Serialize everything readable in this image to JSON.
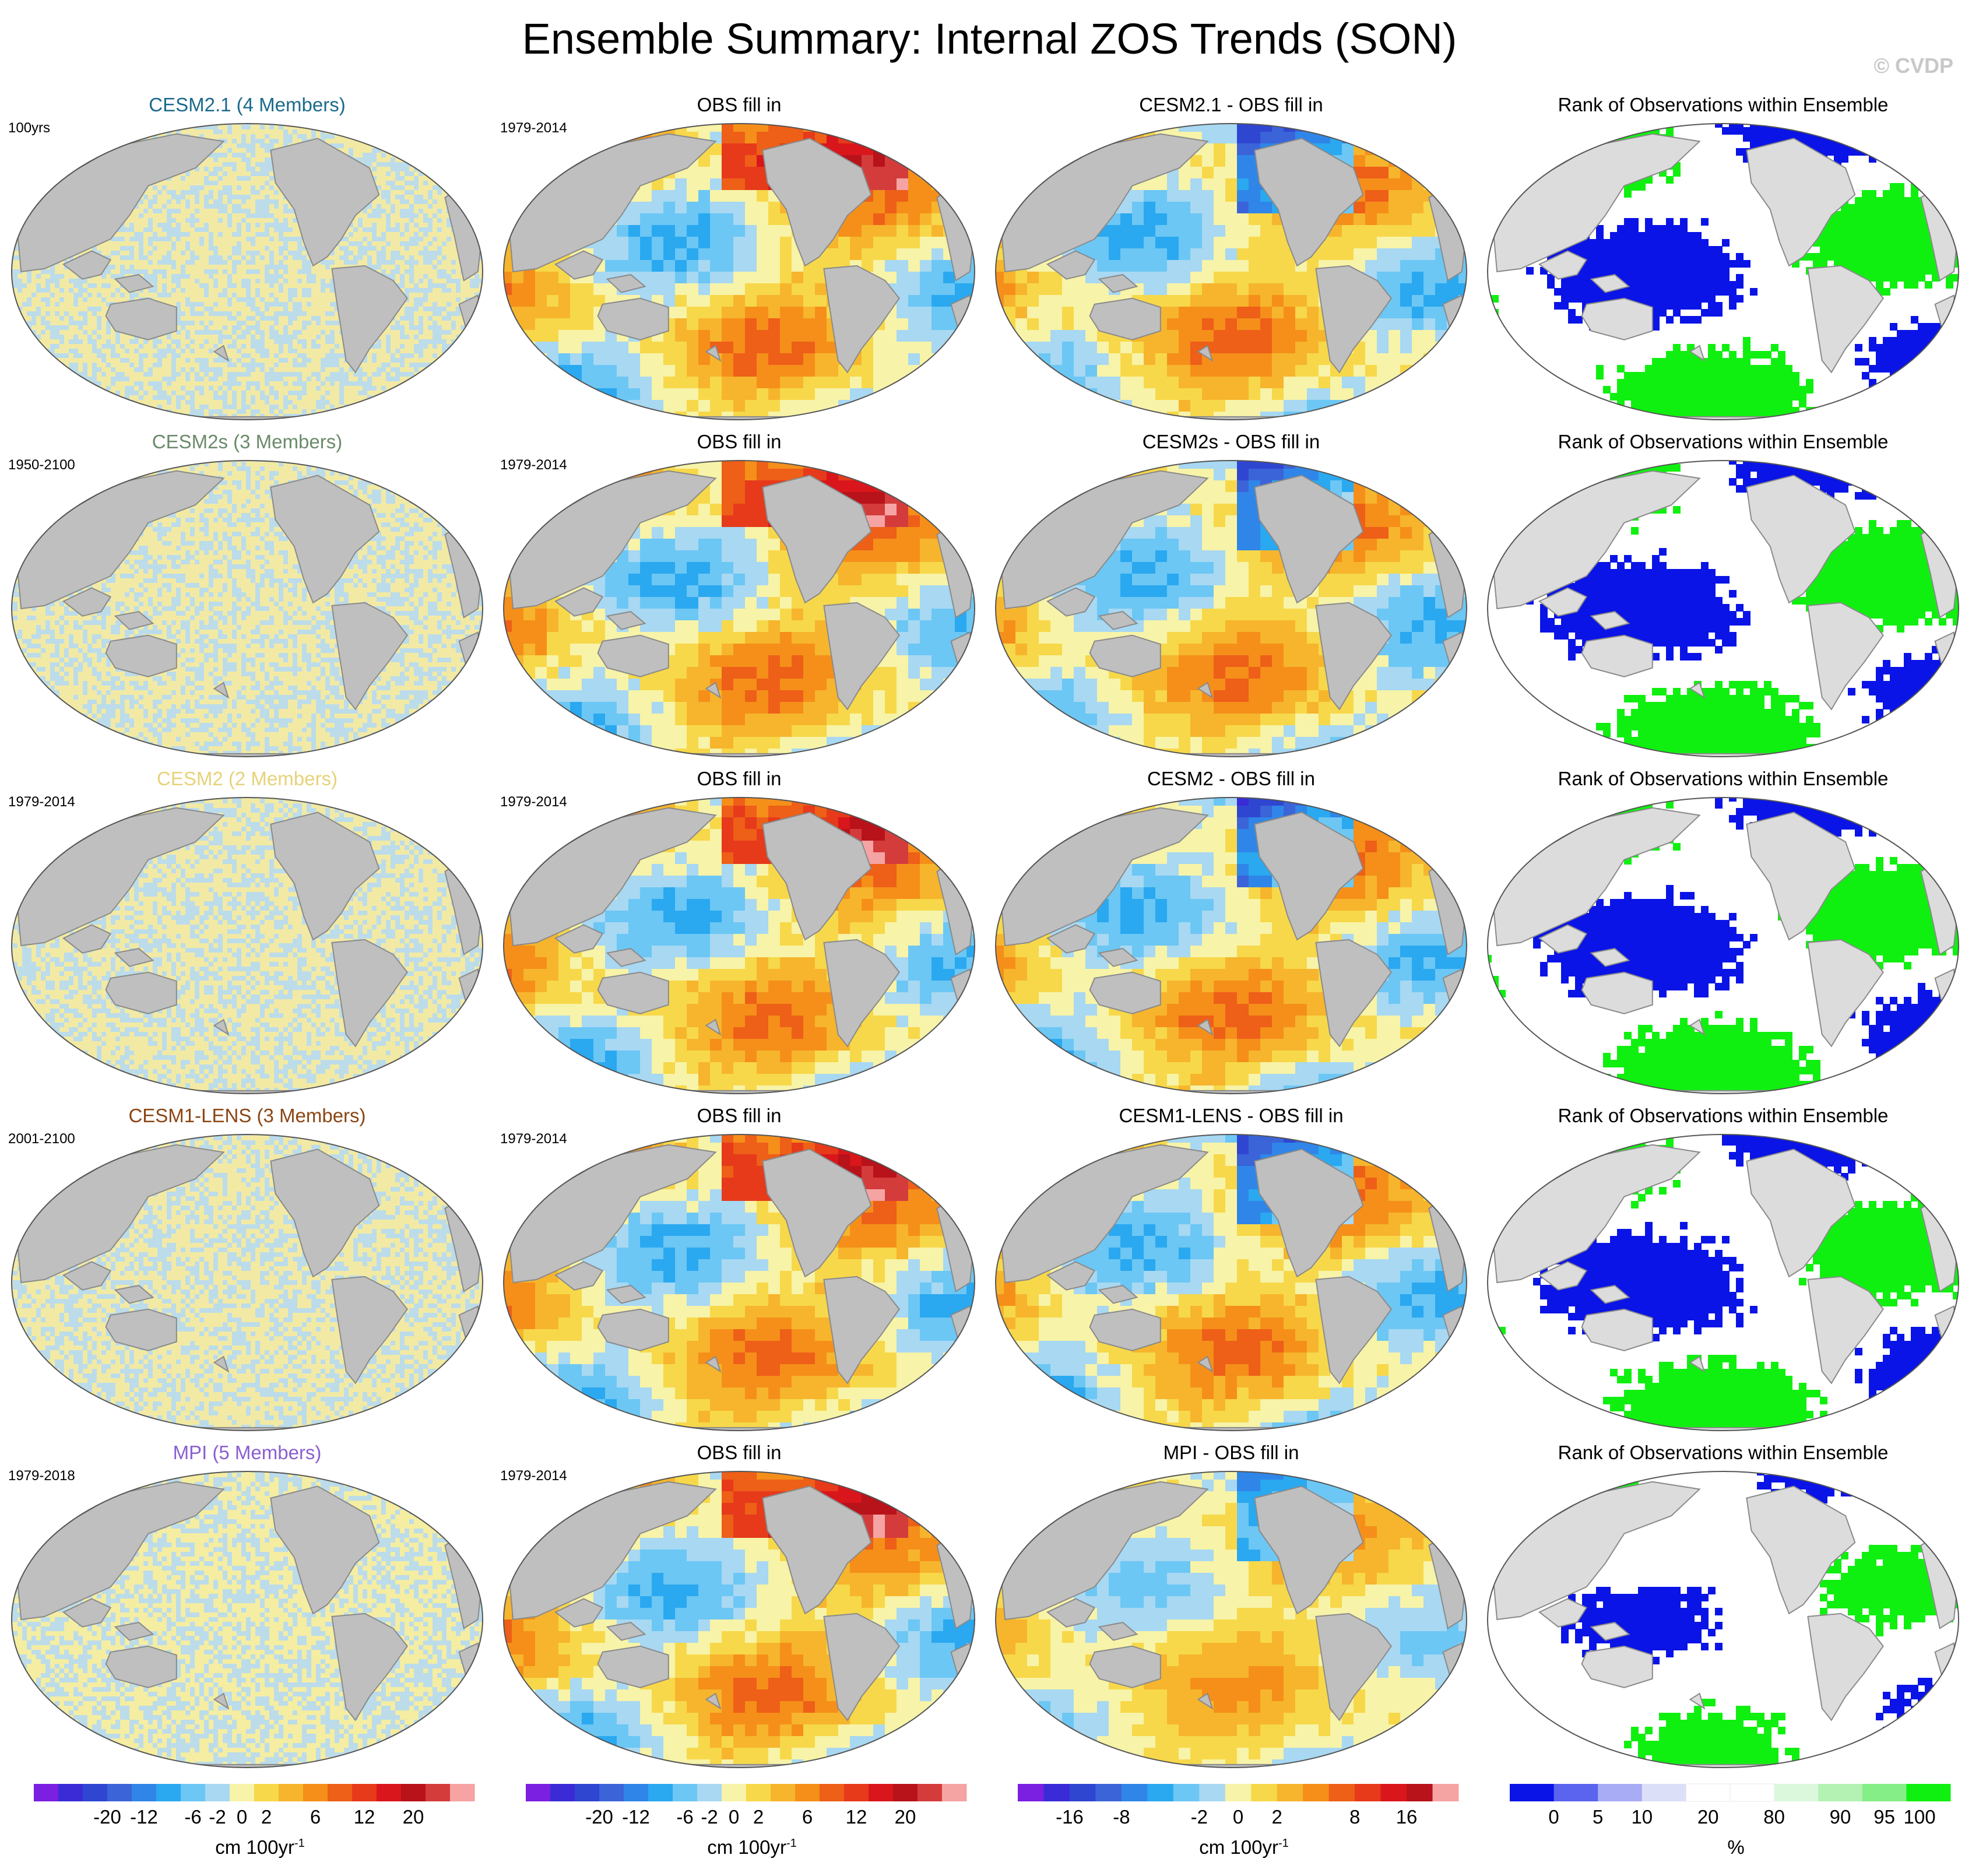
{
  "title": "Ensemble Summary: Internal ZOS Trends (SON)",
  "credit": "© CVDP",
  "rows": [
    {
      "model": {
        "title": "CESM2.1 (4 Members)",
        "title_color": "#1b6a8c",
        "period": "100yrs"
      },
      "obs": {
        "title": "OBS fill in",
        "period": "1979-2014"
      },
      "diff": {
        "title": "CESM2.1 - OBS fill in"
      },
      "rank": {
        "title": "Rank of Observations within Ensemble"
      }
    },
    {
      "model": {
        "title": "CESM2s (3 Members)",
        "title_color": "#6a8a6a",
        "period": "1950-2100"
      },
      "obs": {
        "title": "OBS fill in",
        "period": "1979-2014"
      },
      "diff": {
        "title": "CESM2s - OBS fill in"
      },
      "rank": {
        "title": "Rank of Observations within Ensemble"
      }
    },
    {
      "model": {
        "title": "CESM2 (2 Members)",
        "title_color": "#e6d27a",
        "period": "1979-2014"
      },
      "obs": {
        "title": "OBS fill in",
        "period": "1979-2014"
      },
      "diff": {
        "title": "CESM2 - OBS fill in"
      },
      "rank": {
        "title": "Rank of Observations within Ensemble"
      }
    },
    {
      "model": {
        "title": "CESM1-LENS (3 Members)",
        "title_color": "#8b4513",
        "period": "2001-2100"
      },
      "obs": {
        "title": "OBS fill in",
        "period": "1979-2014"
      },
      "diff": {
        "title": "CESM1-LENS - OBS fill in"
      },
      "rank": {
        "title": "Rank of Observations within Ensemble"
      }
    },
    {
      "model": {
        "title": "MPI (5 Members)",
        "title_color": "#8a5fd0",
        "period": "1979-2018"
      },
      "obs": {
        "title": "OBS fill in",
        "period": "1979-2014"
      },
      "diff": {
        "title": "MPI - OBS fill in"
      },
      "rank": {
        "title": "Rank of Observations within Ensemble"
      }
    }
  ],
  "colorbars": [
    {
      "units": "cm 100yr",
      "units_sup": "-1",
      "colors": [
        "#7b1fe0",
        "#3a2bd6",
        "#2f46d1",
        "#3a64d8",
        "#2f86e8",
        "#2aa8f0",
        "#6cc7f4",
        "#a8d8f2",
        "#f7f3a8",
        "#f7d84a",
        "#f6b52c",
        "#f58f1a",
        "#ee5f18",
        "#e63a1b",
        "#d9161b",
        "#b8121a",
        "#d43c3c",
        "#f6a3a3"
      ],
      "tick_labels": [
        "-20",
        "-12",
        "-6",
        "-2",
        "0",
        "2",
        "6",
        "12",
        "20"
      ]
    },
    {
      "units": "cm 100yr",
      "units_sup": "-1",
      "colors": [
        "#7b1fe0",
        "#3a2bd6",
        "#2f46d1",
        "#3a64d8",
        "#2f86e8",
        "#2aa8f0",
        "#6cc7f4",
        "#a8d8f2",
        "#f7f3a8",
        "#f7d84a",
        "#f6b52c",
        "#f58f1a",
        "#ee5f18",
        "#e63a1b",
        "#d9161b",
        "#b8121a",
        "#d43c3c",
        "#f6a3a3"
      ],
      "tick_labels": [
        "-20",
        "-12",
        "-6",
        "-2",
        "0",
        "2",
        "6",
        "12",
        "20"
      ]
    },
    {
      "units": "cm 100yr",
      "units_sup": "-1",
      "colors": [
        "#7b1fe0",
        "#3a2bd6",
        "#2f46d1",
        "#3a64d8",
        "#2f86e8",
        "#2aa8f0",
        "#6cc7f4",
        "#a8d8f2",
        "#f7f3a8",
        "#f7d84a",
        "#f6b52c",
        "#f58f1a",
        "#ee5f18",
        "#e63a1b",
        "#d9161b",
        "#b8121a",
        "#f6a3a3"
      ],
      "tick_labels": [
        "-16",
        "-8",
        "-2",
        "0",
        "2",
        "8",
        "16"
      ]
    },
    {
      "units": "%",
      "units_sup": "",
      "colors": [
        "#0a14e6",
        "#5a64ee",
        "#a8acf4",
        "#dcdff8",
        "#ffffff",
        "#ffffff",
        "#dcf8dc",
        "#b4f2b4",
        "#86ee86",
        "#10f010"
      ],
      "tick_labels": [
        "0",
        "5",
        "10",
        "20",
        "80",
        "90",
        "95",
        "100"
      ]
    }
  ],
  "chart_data": {
    "type": "heatmap",
    "title": "Ensemble Summary: Internal ZOS Trends (SON)",
    "projection": "global map, Pacific-centered",
    "grid": false,
    "panel_types": [
      "model internal trend (speckled ~0 values)",
      "observations",
      "model minus observations",
      "rank percentile"
    ],
    "rows": [
      "CESM2.1 (4 Members)",
      "CESM2s (3 Members)",
      "CESM2 (2 Members)",
      "CESM1-LENS (3 Members)",
      "MPI (5 Members)"
    ],
    "colorbar_levels_trend": [
      -20,
      -12,
      -6,
      -2,
      0,
      2,
      6,
      12,
      20
    ],
    "colorbar_levels_diff": [
      -16,
      -8,
      -2,
      0,
      2,
      8,
      16
    ],
    "colorbar_levels_rank": [
      0,
      5,
      10,
      20,
      80,
      90,
      95,
      100
    ],
    "units_trend": "cm 100yr-1",
    "units_rank": "%"
  }
}
